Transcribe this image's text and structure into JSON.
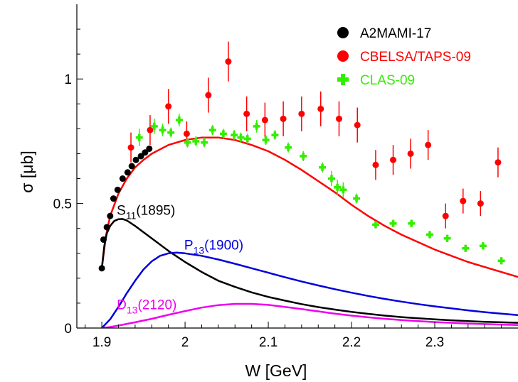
{
  "chart_data": {
    "type": "scatter",
    "xlabel": "W [GeV]",
    "ylabel": "σ [μb]",
    "xlim": [
      1.87,
      2.4
    ],
    "ylim": [
      0,
      1.3
    ],
    "xticks": [
      1.9,
      2.0,
      2.1,
      2.2,
      2.3
    ],
    "xtick_labels": [
      "1.9",
      "2",
      "2.1",
      "2.2",
      "2.3"
    ],
    "yticks": [
      0,
      0.5,
      1.0
    ],
    "ytick_labels": [
      "0",
      "0.5",
      "1"
    ],
    "grid": false,
    "legend_position": "top-right",
    "legend": [
      {
        "label": "A2MAMI-17",
        "color": "#000000",
        "marker": "circle"
      },
      {
        "label": "CBELSA/TAPS-09",
        "color": "#ff0000",
        "marker": "circle"
      },
      {
        "label": "CLAS-09",
        "color": "#33ee00",
        "marker": "cross"
      }
    ],
    "data_series": [
      {
        "name": "A2MAMI-17",
        "color": "#000000",
        "marker": "circle",
        "points": [
          {
            "x": 1.9,
            "y": 0.24,
            "err": 0.01
          },
          {
            "x": 1.902,
            "y": 0.355,
            "err": 0.01
          },
          {
            "x": 1.906,
            "y": 0.405,
            "err": 0.01
          },
          {
            "x": 1.91,
            "y": 0.45,
            "err": 0.01
          },
          {
            "x": 1.914,
            "y": 0.52,
            "err": 0.01
          },
          {
            "x": 1.919,
            "y": 0.555,
            "err": 0.01
          },
          {
            "x": 1.925,
            "y": 0.6,
            "err": 0.01
          },
          {
            "x": 1.931,
            "y": 0.625,
            "err": 0.01
          },
          {
            "x": 1.936,
            "y": 0.65,
            "err": 0.01
          },
          {
            "x": 1.941,
            "y": 0.675,
            "err": 0.01
          },
          {
            "x": 1.947,
            "y": 0.69,
            "err": 0.01
          },
          {
            "x": 1.952,
            "y": 0.705,
            "err": 0.01
          },
          {
            "x": 1.957,
            "y": 0.72,
            "err": 0.01
          }
        ]
      },
      {
        "name": "CBELSA/TAPS-09",
        "color": "#ff0000",
        "marker": "circle",
        "points": [
          {
            "x": 1.935,
            "y": 0.725,
            "err": 0.06
          },
          {
            "x": 1.958,
            "y": 0.795,
            "err": 0.06
          },
          {
            "x": 1.98,
            "y": 0.89,
            "err": 0.07
          },
          {
            "x": 2.002,
            "y": 0.78,
            "err": 0.05
          },
          {
            "x": 2.028,
            "y": 0.935,
            "err": 0.07
          },
          {
            "x": 2.052,
            "y": 1.07,
            "err": 0.08
          },
          {
            "x": 2.074,
            "y": 0.86,
            "err": 0.07
          },
          {
            "x": 2.096,
            "y": 0.835,
            "err": 0.07
          },
          {
            "x": 2.118,
            "y": 0.84,
            "err": 0.07
          },
          {
            "x": 2.14,
            "y": 0.86,
            "err": 0.07
          },
          {
            "x": 2.163,
            "y": 0.88,
            "err": 0.07
          },
          {
            "x": 2.185,
            "y": 0.84,
            "err": 0.07
          },
          {
            "x": 2.207,
            "y": 0.815,
            "err": 0.07
          },
          {
            "x": 2.229,
            "y": 0.655,
            "err": 0.06
          },
          {
            "x": 2.25,
            "y": 0.675,
            "err": 0.06
          },
          {
            "x": 2.271,
            "y": 0.7,
            "err": 0.06
          },
          {
            "x": 2.292,
            "y": 0.735,
            "err": 0.06
          },
          {
            "x": 2.313,
            "y": 0.45,
            "err": 0.05
          },
          {
            "x": 2.334,
            "y": 0.51,
            "err": 0.05
          },
          {
            "x": 2.355,
            "y": 0.5,
            "err": 0.05
          },
          {
            "x": 2.376,
            "y": 0.665,
            "err": 0.06
          }
        ]
      },
      {
        "name": "CLAS-09",
        "color": "#33ee00",
        "marker": "cross",
        "points": [
          {
            "x": 1.945,
            "y": 0.765,
            "err": 0.035
          },
          {
            "x": 1.963,
            "y": 0.81,
            "err": 0.03
          },
          {
            "x": 1.973,
            "y": 0.795,
            "err": 0.025
          },
          {
            "x": 1.983,
            "y": 0.785,
            "err": 0.02
          },
          {
            "x": 1.993,
            "y": 0.835,
            "err": 0.025
          },
          {
            "x": 2.003,
            "y": 0.745,
            "err": 0.02
          },
          {
            "x": 2.013,
            "y": 0.75,
            "err": 0.02
          },
          {
            "x": 2.023,
            "y": 0.745,
            "err": 0.02
          },
          {
            "x": 2.033,
            "y": 0.795,
            "err": 0.02
          },
          {
            "x": 2.046,
            "y": 0.78,
            "err": 0.02
          },
          {
            "x": 2.059,
            "y": 0.775,
            "err": 0.02
          },
          {
            "x": 2.067,
            "y": 0.765,
            "err": 0.02
          },
          {
            "x": 2.075,
            "y": 0.76,
            "err": 0.02
          },
          {
            "x": 2.086,
            "y": 0.81,
            "err": 0.025
          },
          {
            "x": 2.097,
            "y": 0.755,
            "err": 0.02
          },
          {
            "x": 2.108,
            "y": 0.775,
            "err": 0.02
          },
          {
            "x": 2.124,
            "y": 0.725,
            "err": 0.02
          },
          {
            "x": 2.142,
            "y": 0.69,
            "err": 0.02
          },
          {
            "x": 2.165,
            "y": 0.645,
            "err": 0.02
          },
          {
            "x": 2.176,
            "y": 0.6,
            "err": 0.03
          },
          {
            "x": 2.183,
            "y": 0.565,
            "err": 0.03
          },
          {
            "x": 2.19,
            "y": 0.555,
            "err": 0.03
          },
          {
            "x": 2.206,
            "y": 0.52,
            "err": 0.02
          },
          {
            "x": 2.229,
            "y": 0.415,
            "err": 0.015
          },
          {
            "x": 2.25,
            "y": 0.42,
            "err": 0.015
          },
          {
            "x": 2.272,
            "y": 0.42,
            "err": 0.015
          },
          {
            "x": 2.294,
            "y": 0.375,
            "err": 0.015
          },
          {
            "x": 2.315,
            "y": 0.36,
            "err": 0.015
          },
          {
            "x": 2.337,
            "y": 0.32,
            "err": 0.015
          },
          {
            "x": 2.358,
            "y": 0.33,
            "err": 0.015
          },
          {
            "x": 2.38,
            "y": 0.27,
            "err": 0.015
          }
        ]
      }
    ],
    "curves": [
      {
        "name": "total",
        "color": "#ff0000",
        "x": [
          1.9,
          1.905,
          1.91,
          1.92,
          1.93,
          1.94,
          1.95,
          1.96,
          1.98,
          2.0,
          2.02,
          2.04,
          2.06,
          2.08,
          2.1,
          2.12,
          2.14,
          2.16,
          2.18,
          2.2,
          2.22,
          2.24,
          2.26,
          2.28,
          2.3,
          2.32,
          2.34,
          2.36,
          2.38,
          2.4
        ],
        "y": [
          0.24,
          0.37,
          0.45,
          0.54,
          0.6,
          0.645,
          0.675,
          0.7,
          0.735,
          0.755,
          0.765,
          0.765,
          0.755,
          0.735,
          0.71,
          0.675,
          0.635,
          0.59,
          0.545,
          0.495,
          0.45,
          0.41,
          0.375,
          0.345,
          0.315,
          0.29,
          0.265,
          0.245,
          0.225,
          0.205
        ]
      },
      {
        "name": "S11(1895)",
        "color": "#000000",
        "x": [
          1.9,
          1.903,
          1.906,
          1.91,
          1.915,
          1.92,
          1.925,
          1.93,
          1.94,
          1.95,
          1.96,
          1.98,
          2.0,
          2.02,
          2.04,
          2.06,
          2.08,
          2.1,
          2.12,
          2.14,
          2.16,
          2.18,
          2.2,
          2.22,
          2.24,
          2.26,
          2.28,
          2.3,
          2.32,
          2.34,
          2.36,
          2.38,
          2.4
        ],
        "y": [
          0.24,
          0.33,
          0.38,
          0.41,
          0.43,
          0.437,
          0.438,
          0.432,
          0.41,
          0.385,
          0.36,
          0.31,
          0.265,
          0.225,
          0.19,
          0.165,
          0.143,
          0.125,
          0.11,
          0.096,
          0.084,
          0.074,
          0.065,
          0.057,
          0.05,
          0.044,
          0.039,
          0.035,
          0.031,
          0.028,
          0.025,
          0.023,
          0.021
        ]
      },
      {
        "name": "P13(1900)",
        "color": "#0000dd",
        "x": [
          1.9,
          1.91,
          1.92,
          1.93,
          1.94,
          1.95,
          1.96,
          1.97,
          1.98,
          1.99,
          2.0,
          2.02,
          2.04,
          2.06,
          2.08,
          2.1,
          2.12,
          2.14,
          2.16,
          2.18,
          2.2,
          2.22,
          2.24,
          2.26,
          2.28,
          2.3,
          2.32,
          2.34,
          2.36,
          2.38,
          2.4
        ],
        "y": [
          0.0,
          0.035,
          0.085,
          0.14,
          0.19,
          0.235,
          0.268,
          0.29,
          0.3,
          0.303,
          0.3,
          0.29,
          0.275,
          0.258,
          0.24,
          0.222,
          0.204,
          0.187,
          0.171,
          0.156,
          0.142,
          0.129,
          0.117,
          0.106,
          0.096,
          0.087,
          0.079,
          0.071,
          0.064,
          0.058,
          0.052
        ]
      },
      {
        "name": "D13(2120)",
        "color": "#ee00ee",
        "x": [
          1.9,
          1.91,
          1.92,
          1.94,
          1.96,
          1.98,
          2.0,
          2.02,
          2.04,
          2.06,
          2.08,
          2.1,
          2.12,
          2.14,
          2.16,
          2.18,
          2.2,
          2.22,
          2.24,
          2.26,
          2.28,
          2.3,
          2.32,
          2.34,
          2.36,
          2.38,
          2.4
        ],
        "y": [
          0.0,
          0.004,
          0.01,
          0.023,
          0.037,
          0.053,
          0.068,
          0.082,
          0.092,
          0.097,
          0.097,
          0.093,
          0.085,
          0.076,
          0.067,
          0.058,
          0.05,
          0.043,
          0.037,
          0.032,
          0.028,
          0.024,
          0.021,
          0.018,
          0.016,
          0.014,
          0.012
        ]
      }
    ],
    "annotations": [
      {
        "main": "S",
        "sub": "11",
        "rest": "(1895)",
        "color": "#000000",
        "x": 1.918,
        "y": 0.455
      },
      {
        "main": "P",
        "sub": "13",
        "rest": "(1900)",
        "color": "#0000dd",
        "x": 1.999,
        "y": 0.315
      },
      {
        "main": "D",
        "sub": "13",
        "rest": "(2120)",
        "color": "#ee00ee",
        "x": 1.918,
        "y": 0.075
      }
    ]
  }
}
